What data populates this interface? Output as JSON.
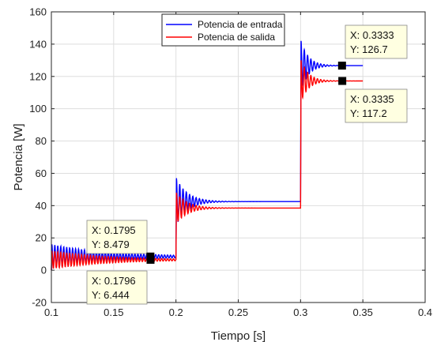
{
  "chart_data": {
    "type": "line",
    "title": "",
    "xlabel": "Tiempo [s]",
    "ylabel": "Potencia [W]",
    "xlim": [
      0.1,
      0.4
    ],
    "ylim": [
      -20,
      160
    ],
    "xticks": [
      0.1,
      0.15,
      0.2,
      0.25,
      0.3,
      0.35,
      0.4
    ],
    "xtick_labels": [
      "0.1",
      "0.15",
      "0.2",
      "0.25",
      "0.3",
      "0.35",
      "0.4"
    ],
    "yticks": [
      -20,
      0,
      20,
      40,
      60,
      80,
      100,
      120,
      140,
      160
    ],
    "ytick_labels": [
      "-20",
      "0",
      "20",
      "40",
      "60",
      "80",
      "100",
      "120",
      "140",
      "160"
    ],
    "grid": true,
    "legend_position": "top",
    "x_end": 0.35,
    "series": [
      {
        "name": "Potencia de entrada",
        "color": "#0000ff",
        "segments": [
          {
            "t0": 0.1,
            "t1": 0.2,
            "steady": 8.479,
            "peak": 16,
            "low": 0,
            "decay": 0.045,
            "freq": 420
          },
          {
            "t0": 0.2,
            "t1": 0.3,
            "steady": 42.5,
            "peak": 57,
            "low": 25,
            "decay": 0.009,
            "freq": 380
          },
          {
            "t0": 0.3,
            "t1": 0.35,
            "steady": 126.7,
            "peak": 142,
            "low": 60,
            "decay": 0.006,
            "freq": 380
          }
        ]
      },
      {
        "name": "Potencia de salida",
        "color": "#ff0000",
        "segments": [
          {
            "t0": 0.1,
            "t1": 0.2,
            "steady": 6.444,
            "peak": 12,
            "low": 0,
            "decay": 0.045,
            "freq": 420
          },
          {
            "t0": 0.2,
            "t1": 0.3,
            "steady": 38.5,
            "peak": 48,
            "low": 24,
            "decay": 0.009,
            "freq": 380
          },
          {
            "t0": 0.3,
            "t1": 0.35,
            "steady": 117.2,
            "peak": 130,
            "low": 60,
            "decay": 0.006,
            "freq": 380
          }
        ]
      }
    ],
    "datatips": [
      {
        "x_label": "X: 0.1795",
        "y_label": "Y: 8.479",
        "x": 0.1795,
        "y": 8.479,
        "placement": "above-left"
      },
      {
        "x_label": "X: 0.1796",
        "y_label": "Y: 6.444",
        "x": 0.1796,
        "y": 6.444,
        "placement": "below-left"
      },
      {
        "x_label": "X: 0.3333",
        "y_label": "Y: 126.7",
        "x": 0.3333,
        "y": 126.7,
        "placement": "above"
      },
      {
        "x_label": "X: 0.3335",
        "y_label": "Y: 117.2",
        "x": 0.3335,
        "y": 117.2,
        "placement": "below"
      }
    ]
  }
}
